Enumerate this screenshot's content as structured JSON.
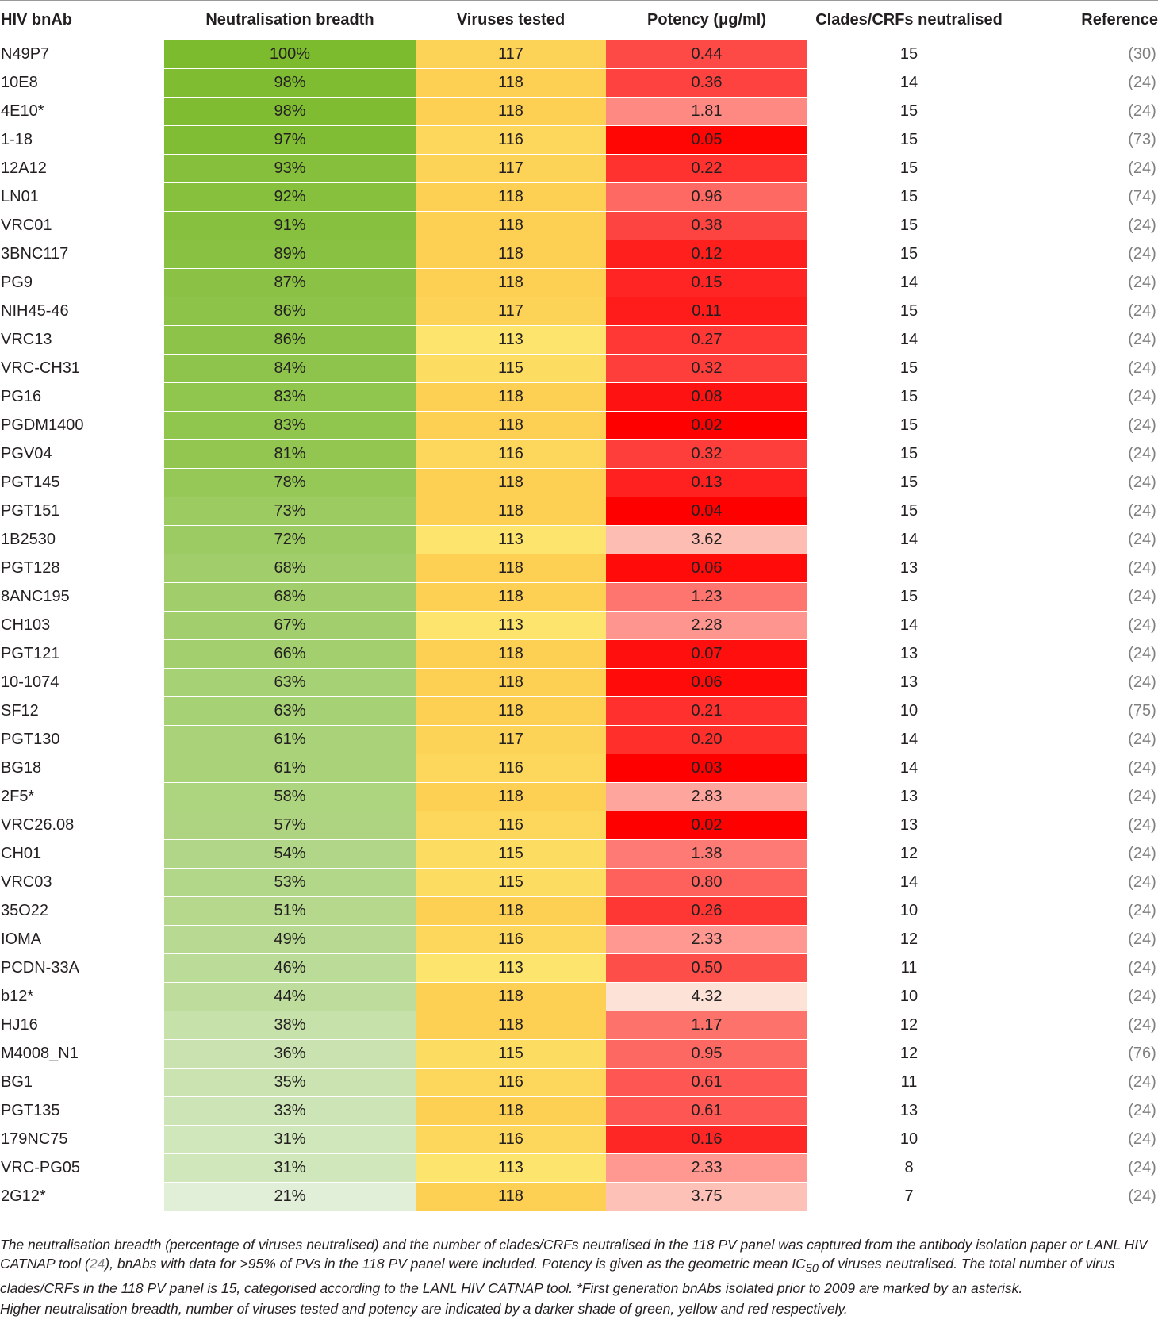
{
  "table": {
    "headers": [
      "HIV bnAb",
      "Neutralisation breadth",
      "Viruses tested",
      "Potency (μg/ml)",
      "Clades/CRFs neutralised",
      "Reference"
    ],
    "colors": {
      "breadth_max": "#7dbb2e",
      "breadth_min": "#e1efd8",
      "viruses_max": "#fdcf52",
      "viruses_min": "#fde46c",
      "potency_max": "#ff0000",
      "potency_min": "#fde2d7"
    },
    "rows": [
      {
        "name": "N49P7",
        "breadth": "100%",
        "viruses": "117",
        "potency": "0.44",
        "clades": "15",
        "reference": "(30)"
      },
      {
        "name": "10E8",
        "breadth": "98%",
        "viruses": "118",
        "potency": "0.36",
        "clades": "14",
        "reference": "(24)"
      },
      {
        "name": "4E10*",
        "breadth": "98%",
        "viruses": "118",
        "potency": "1.81",
        "clades": "15",
        "reference": "(24)"
      },
      {
        "name": "1-18",
        "breadth": "97%",
        "viruses": "116",
        "potency": "0.05",
        "clades": "15",
        "reference": "(73)"
      },
      {
        "name": "12A12",
        "breadth": "93%",
        "viruses": "117",
        "potency": "0.22",
        "clades": "15",
        "reference": "(24)"
      },
      {
        "name": "LN01",
        "breadth": "92%",
        "viruses": "118",
        "potency": "0.96",
        "clades": "15",
        "reference": "(74)"
      },
      {
        "name": "VRC01",
        "breadth": "91%",
        "viruses": "118",
        "potency": "0.38",
        "clades": "15",
        "reference": "(24)"
      },
      {
        "name": "3BNC117",
        "breadth": "89%",
        "viruses": "118",
        "potency": "0.12",
        "clades": "15",
        "reference": "(24)"
      },
      {
        "name": "PG9",
        "breadth": "87%",
        "viruses": "118",
        "potency": "0.15",
        "clades": "14",
        "reference": "(24)"
      },
      {
        "name": "NIH45-46",
        "breadth": "86%",
        "viruses": "117",
        "potency": "0.11",
        "clades": "15",
        "reference": "(24)"
      },
      {
        "name": "VRC13",
        "breadth": "86%",
        "viruses": "113",
        "potency": "0.27",
        "clades": "14",
        "reference": "(24)"
      },
      {
        "name": "VRC-CH31",
        "breadth": "84%",
        "viruses": "115",
        "potency": "0.32",
        "clades": "15",
        "reference": "(24)"
      },
      {
        "name": "PG16",
        "breadth": "83%",
        "viruses": "118",
        "potency": "0.08",
        "clades": "15",
        "reference": "(24)"
      },
      {
        "name": "PGDM1400",
        "breadth": "83%",
        "viruses": "118",
        "potency": "0.02",
        "clades": "15",
        "reference": "(24)"
      },
      {
        "name": "PGV04",
        "breadth": "81%",
        "viruses": "116",
        "potency": "0.32",
        "clades": "15",
        "reference": "(24)"
      },
      {
        "name": "PGT145",
        "breadth": "78%",
        "viruses": "118",
        "potency": "0.13",
        "clades": "15",
        "reference": "(24)"
      },
      {
        "name": "PGT151",
        "breadth": "73%",
        "viruses": "118",
        "potency": "0.04",
        "clades": "15",
        "reference": "(24)"
      },
      {
        "name": "1B2530",
        "breadth": "72%",
        "viruses": "113",
        "potency": "3.62",
        "clades": "14",
        "reference": "(24)"
      },
      {
        "name": "PGT128",
        "breadth": "68%",
        "viruses": "118",
        "potency": "0.06",
        "clades": "13",
        "reference": "(24)"
      },
      {
        "name": "8ANC195",
        "breadth": "68%",
        "viruses": "118",
        "potency": "1.23",
        "clades": "15",
        "reference": "(24)"
      },
      {
        "name": "CH103",
        "breadth": "67%",
        "viruses": "113",
        "potency": "2.28",
        "clades": "14",
        "reference": "(24)"
      },
      {
        "name": "PGT121",
        "breadth": "66%",
        "viruses": "118",
        "potency": "0.07",
        "clades": "13",
        "reference": "(24)"
      },
      {
        "name": "10-1074",
        "breadth": "63%",
        "viruses": "118",
        "potency": "0.06",
        "clades": "13",
        "reference": "(24)"
      },
      {
        "name": "SF12",
        "breadth": "63%",
        "viruses": "118",
        "potency": "0.21",
        "clades": "10",
        "reference": "(75)"
      },
      {
        "name": "PGT130",
        "breadth": "61%",
        "viruses": "117",
        "potency": "0.20",
        "clades": "14",
        "reference": "(24)"
      },
      {
        "name": "BG18",
        "breadth": "61%",
        "viruses": "116",
        "potency": "0.03",
        "clades": "14",
        "reference": "(24)"
      },
      {
        "name": "2F5*",
        "breadth": "58%",
        "viruses": "118",
        "potency": "2.83",
        "clades": "13",
        "reference": "(24)"
      },
      {
        "name": "VRC26.08",
        "breadth": "57%",
        "viruses": "116",
        "potency": "0.02",
        "clades": "13",
        "reference": "(24)"
      },
      {
        "name": "CH01",
        "breadth": "54%",
        "viruses": "115",
        "potency": "1.38",
        "clades": "12",
        "reference": "(24)"
      },
      {
        "name": "VRC03",
        "breadth": "53%",
        "viruses": "115",
        "potency": "0.80",
        "clades": "14",
        "reference": "(24)"
      },
      {
        "name": "35O22",
        "breadth": "51%",
        "viruses": "118",
        "potency": "0.26",
        "clades": "10",
        "reference": "(24)"
      },
      {
        "name": "IOMA",
        "breadth": "49%",
        "viruses": "116",
        "potency": "2.33",
        "clades": "12",
        "reference": "(24)"
      },
      {
        "name": "PCDN-33A",
        "breadth": "46%",
        "viruses": "113",
        "potency": "0.50",
        "clades": "11",
        "reference": "(24)"
      },
      {
        "name": "b12*",
        "breadth": "44%",
        "viruses": "118",
        "potency": "4.32",
        "clades": "10",
        "reference": "(24)"
      },
      {
        "name": "HJ16",
        "breadth": "38%",
        "viruses": "118",
        "potency": "1.17",
        "clades": "12",
        "reference": "(24)"
      },
      {
        "name": "M4008_N1",
        "breadth": "36%",
        "viruses": "115",
        "potency": "0.95",
        "clades": "12",
        "reference": "(76)"
      },
      {
        "name": "BG1",
        "breadth": "35%",
        "viruses": "116",
        "potency": "0.61",
        "clades": "11",
        "reference": "(24)"
      },
      {
        "name": "PGT135",
        "breadth": "33%",
        "viruses": "118",
        "potency": "0.61",
        "clades": "13",
        "reference": "(24)"
      },
      {
        "name": "179NC75",
        "breadth": "31%",
        "viruses": "116",
        "potency": "0.16",
        "clades": "10",
        "reference": "(24)"
      },
      {
        "name": "VRC-PG05",
        "breadth": "31%",
        "viruses": "113",
        "potency": "2.33",
        "clades": "8",
        "reference": "(24)"
      },
      {
        "name": "2G12*",
        "breadth": "21%",
        "viruses": "118",
        "potency": "3.75",
        "clades": "7",
        "reference": "(24)"
      }
    ]
  },
  "footnote": {
    "part1": "The neutralisation breadth (percentage of viruses neutralised) and the number of clades/CRFs neutralised in the 118 PV panel was captured from the antibody isolation paper or LANL HIV CATNAP tool (",
    "ref": "24",
    "part2": "), bnAbs with data for >95% of PVs in the 118 PV panel were included. Potency is given as the geometric mean IC",
    "subscript": "50",
    "part3": " of viruses neutralised. The total number of virus clades/CRFs in the 118 PV panel is 15, categorised according to the LANL HIV CATNAP tool. *First generation bnAbs isolated prior to 2009 are marked by an asterisk.",
    "line2": "Higher neutralisation breadth, number of viruses tested and potency are indicated by a darker shade of green, yellow and red respectively."
  }
}
